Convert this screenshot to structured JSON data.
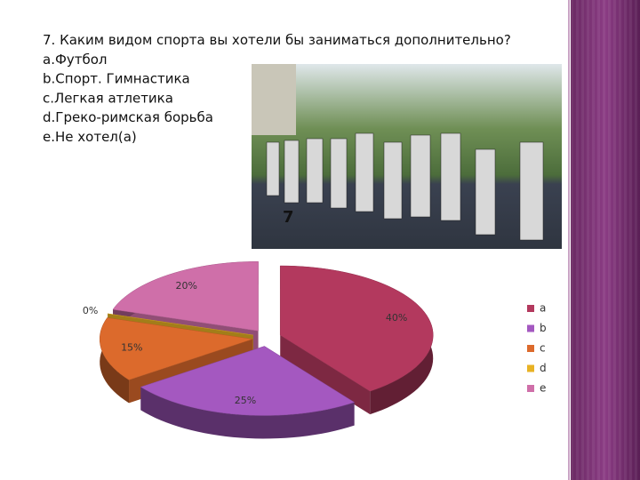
{
  "question": "7. Каким видом спорта вы хотели бы заниматься дополнительно?",
  "options": [
    "a.Футбол",
    "b.Спорт. Гимнастика",
    "c.Легкая атлетика",
    "d.Греко-римская борьба",
    "e.Не хотел(а)"
  ],
  "photo_label": "7",
  "chart_data": {
    "type": "pie",
    "categories": [
      "a",
      "b",
      "c",
      "d",
      "e"
    ],
    "values": [
      40,
      25,
      15,
      0,
      20
    ],
    "value_labels": [
      "40%",
      "25%",
      "15%",
      "0%",
      "20%"
    ],
    "colors": [
      "#b3395e",
      "#a458c0",
      "#dc6a2c",
      "#e8b224",
      "#cf6fa9"
    ],
    "legend": "right"
  }
}
